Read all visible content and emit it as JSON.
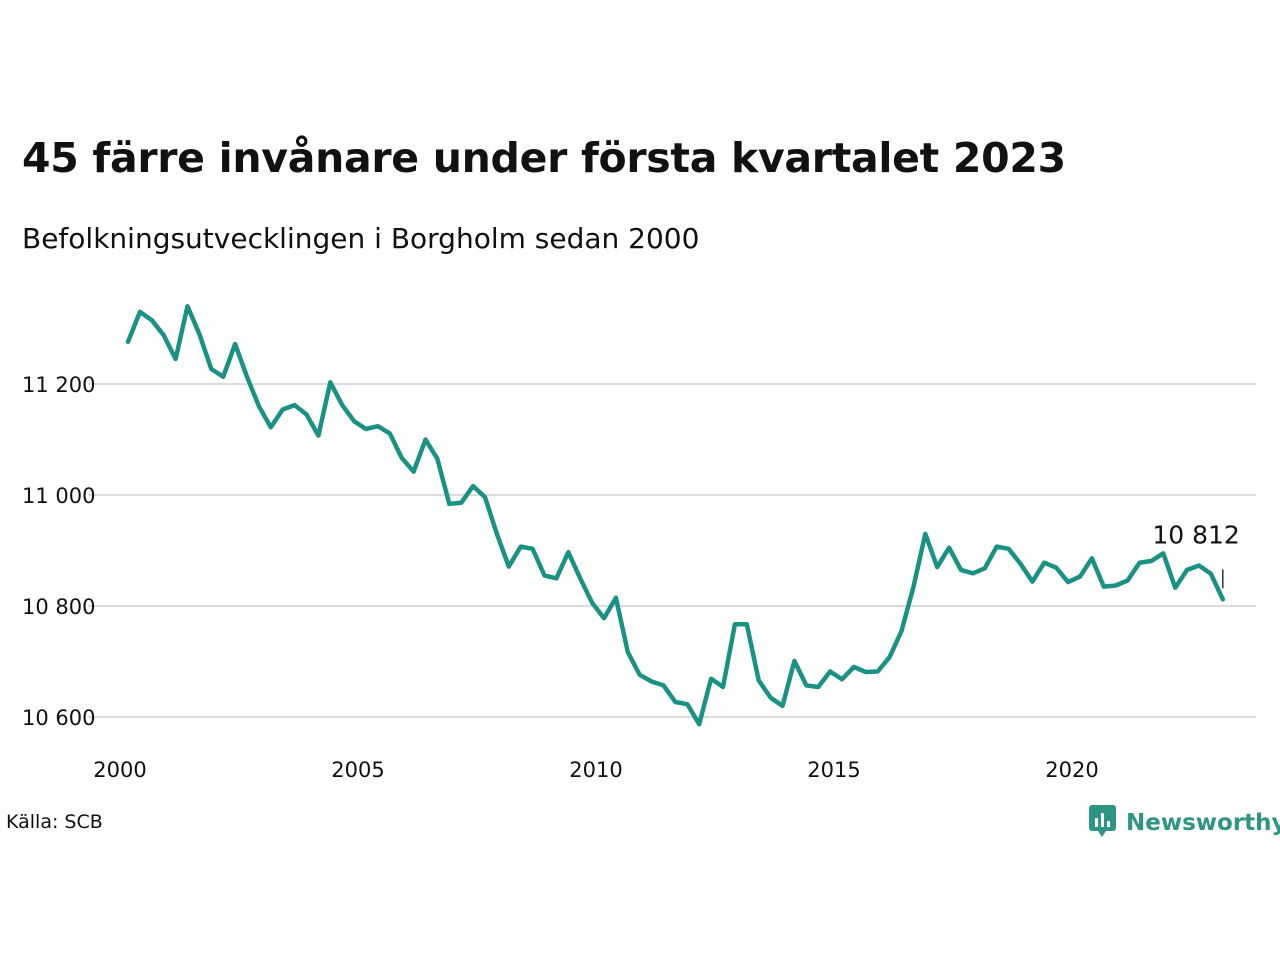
{
  "title": "45 färre invånare under första kvartalet 2023",
  "subtitle": "Befolkningsutvecklingen i Borgholm sedan 2000",
  "source": "Källa: SCB",
  "brand": {
    "name": "Newsworthy",
    "icon": "newsworthy-logo-icon",
    "color": "#2e9484"
  },
  "chart_data": {
    "type": "line",
    "title": "45 färre invånare under första kvartalet 2023",
    "subtitle": "Befolkningsutvecklingen i Borgholm sedan 2000",
    "xlabel": "",
    "ylabel": "",
    "line_color": "#1a9283",
    "grid": "horizontal",
    "legend": "none",
    "xlim": [
      2000,
      2023.5
    ],
    "ylim": [
      10580,
      11340
    ],
    "x_ticks": [
      2000,
      2005,
      2010,
      2015,
      2020
    ],
    "x_tick_labels": [
      "2000",
      "2005",
      "2010",
      "2015",
      "2020"
    ],
    "y_ticks": [
      10600,
      10800,
      11000,
      11200
    ],
    "y_tick_labels": [
      "10 600",
      "10 800",
      "11 000",
      "11 200"
    ],
    "x_start": "2000 Q1",
    "x_step": "quarter",
    "values": [
      11276,
      11330,
      11315,
      11288,
      11245,
      11340,
      11290,
      11227,
      11213,
      11272,
      11213,
      11160,
      11122,
      11154,
      11162,
      11145,
      11107,
      11203,
      11162,
      11133,
      11119,
      11124,
      11111,
      11067,
      11042,
      11100,
      11065,
      10984,
      10986,
      11016,
      10996,
      10930,
      10871,
      10907,
      10903,
      10855,
      10850,
      10897,
      10850,
      10806,
      10778,
      10815,
      10717,
      10676,
      10664,
      10657,
      10627,
      10623,
      10587,
      10669,
      10654,
      10767,
      10767,
      10666,
      10635,
      10620,
      10701,
      10657,
      10654,
      10682,
      10668,
      10690,
      10681,
      10682,
      10708,
      10755,
      10834,
      10930,
      10870,
      10905,
      10865,
      10859,
      10868,
      10907,
      10903,
      10876,
      10844,
      10878,
      10869,
      10843,
      10853,
      10886,
      10835,
      10837,
      10846,
      10878,
      10881,
      10895,
      10833,
      10865,
      10873,
      10858,
      10812
    ],
    "annotations": [
      {
        "x": "2023 Q1",
        "y": 10812,
        "label": "10 812"
      }
    ]
  }
}
